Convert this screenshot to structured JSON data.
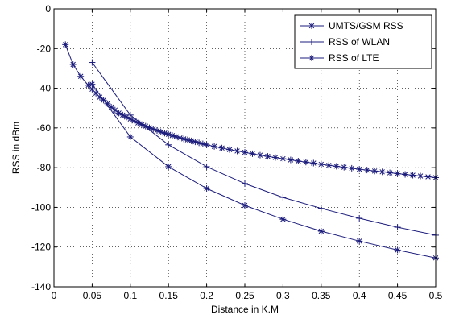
{
  "chart_data": {
    "type": "line",
    "xlabel": "Distance in K.M",
    "ylabel": "RSS in dBm",
    "xlim": [
      0,
      0.5
    ],
    "ylim": [
      -140,
      0
    ],
    "xticks": [
      "0",
      "0.05",
      "0.1",
      "0.15",
      "0.2",
      "0.25",
      "0.3",
      "0.35",
      "0.4",
      "0.45",
      "0.5"
    ],
    "yticks": [
      "0",
      "-20",
      "-40",
      "-60",
      "-80",
      "-100",
      "-120",
      "-140"
    ],
    "grid": true,
    "legend_position": "top-right",
    "line_color": "#1c1c7c",
    "series": [
      {
        "name": "UMTS/GSM RSS",
        "marker": "asterisk",
        "x": [
          0.015,
          0.025,
          0.035,
          0.045,
          0.05,
          0.055,
          0.06,
          0.065,
          0.07,
          0.075,
          0.08,
          0.085,
          0.09,
          0.095,
          0.1,
          0.105,
          0.11,
          0.115,
          0.12,
          0.125,
          0.13,
          0.135,
          0.14,
          0.145,
          0.15,
          0.155,
          0.16,
          0.165,
          0.17,
          0.175,
          0.18,
          0.185,
          0.19,
          0.195,
          0.2,
          0.21,
          0.22,
          0.23,
          0.24,
          0.25,
          0.26,
          0.27,
          0.28,
          0.29,
          0.3,
          0.31,
          0.32,
          0.33,
          0.34,
          0.35,
          0.36,
          0.37,
          0.38,
          0.39,
          0.4,
          0.41,
          0.42,
          0.43,
          0.44,
          0.45,
          0.46,
          0.47,
          0.48,
          0.49,
          0.5
        ],
        "y": [
          -18,
          -28,
          -34,
          -38.5,
          -40.5,
          -42.5,
          -44.5,
          -46,
          -47.8,
          -49.5,
          -51,
          -52.5,
          -53.5,
          -54.5,
          -55.5,
          -56.5,
          -57.5,
          -58.3,
          -59.1,
          -59.9,
          -60.6,
          -61.3,
          -62,
          -62.6,
          -63.2,
          -63.8,
          -64.4,
          -65,
          -65.5,
          -66,
          -66.5,
          -67,
          -67.5,
          -68,
          -68.5,
          -69.3,
          -70.1,
          -70.9,
          -71.6,
          -72.3,
          -73,
          -73.7,
          -74.3,
          -74.9,
          -75.5,
          -76.1,
          -76.7,
          -77.2,
          -77.7,
          -78.3,
          -78.8,
          -79.3,
          -79.8,
          -80.3,
          -80.8,
          -81.2,
          -81.7,
          -82.1,
          -82.6,
          -83,
          -83.4,
          -83.8,
          -84.2,
          -84.6,
          -85
        ]
      },
      {
        "name": "RSS of WLAN",
        "marker": "plus",
        "x": [
          0.05,
          0.1,
          0.15,
          0.2,
          0.25,
          0.3,
          0.35,
          0.4,
          0.45,
          0.5
        ],
        "y": [
          -27,
          -53.5,
          -68.5,
          -79.5,
          -88,
          -95,
          -100.5,
          -105.5,
          -110,
          -114
        ]
      },
      {
        "name": "RSS of LTE",
        "marker": "asterisk",
        "x": [
          0.05,
          0.1,
          0.15,
          0.2,
          0.25,
          0.3,
          0.35,
          0.4,
          0.45,
          0.5
        ],
        "y": [
          -38,
          -64.5,
          -79.5,
          -90.5,
          -99,
          -106,
          -112,
          -117,
          -121.5,
          -125.5
        ]
      }
    ]
  }
}
